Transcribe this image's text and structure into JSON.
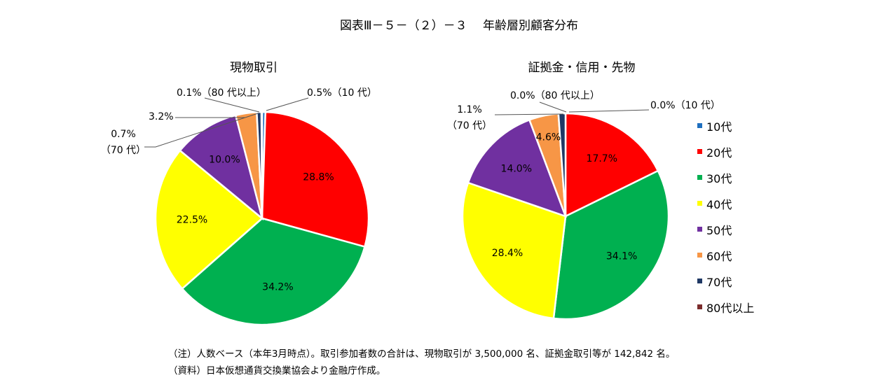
{
  "figure_title": "図表Ⅲ－５－（２）－３　 年齢層別顧客分布",
  "notes": [
    "（注）人数ベース（本年3月時点）。取引参加者数の合計は、現物取引が 3,500,000 名、証拠金取引等が 142,842 名。",
    "（資料）日本仮想通貨交換業協会より金融庁作成。"
  ],
  "colors": {
    "10代": "#1f6fbf",
    "20代": "#ff0000",
    "30代": "#00b050",
    "40代": "#ffff00",
    "50代": "#7030a0",
    "60代": "#f79646",
    "70代": "#1f3864",
    "80代以上": "#7b2c2c"
  },
  "legend": [
    "10代",
    "20代",
    "30代",
    "40代",
    "50代",
    "60代",
    "70代",
    "80代以上"
  ],
  "chart_data": [
    {
      "type": "pie",
      "title": "現物取引",
      "categories": [
        "10代",
        "20代",
        "30代",
        "40代",
        "50代",
        "60代",
        "70代",
        "80代以上"
      ],
      "values": [
        0.5,
        28.8,
        34.2,
        22.5,
        10.0,
        3.2,
        0.7,
        0.1
      ],
      "labels": {
        "inside": [
          "28.8%",
          "34.2%",
          "22.5%",
          "10.0%"
        ],
        "callouts": [
          "0.1%（80 代以上）",
          "0.5%（10 代）",
          "3.2%",
          "0.7%",
          "（70 代）"
        ]
      }
    },
    {
      "type": "pie",
      "title": "証拠金・信用・先物",
      "categories": [
        "10代",
        "20代",
        "30代",
        "40代",
        "50代",
        "60代",
        "70代",
        "80代以上"
      ],
      "values": [
        0.0,
        17.7,
        34.1,
        28.4,
        14.0,
        4.6,
        1.1,
        0.0
      ],
      "labels": {
        "inside": [
          "17.7%",
          "34.1%",
          "28.4%",
          "14.0%",
          "4.6%"
        ],
        "callouts": [
          "0.0%（80 代以上）",
          "0.0%（10 代）",
          "1.1%",
          "（70 代）"
        ]
      }
    }
  ]
}
